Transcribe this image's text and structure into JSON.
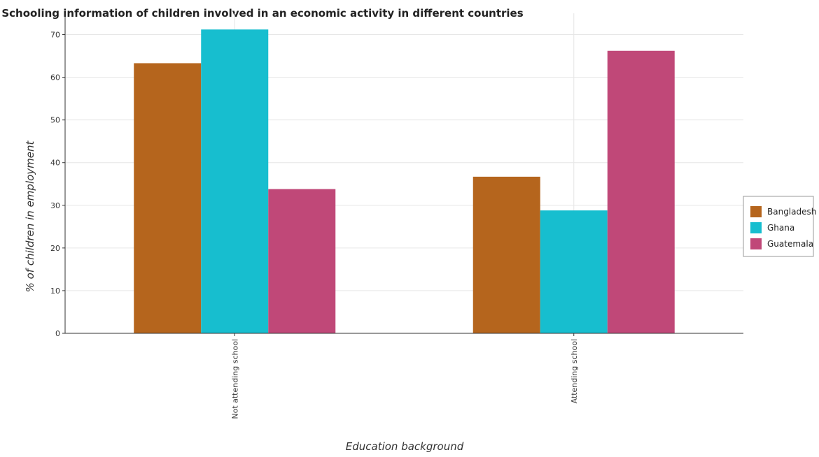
{
  "chart_data": {
    "type": "bar",
    "title": "Schooling information of children involved in an economic activity in different countries",
    "xlabel": "Education background",
    "ylabel": "% of children in employment",
    "categories": [
      "Not attending school",
      "Attending school"
    ],
    "series": [
      {
        "name": "Bangladesh",
        "color": "#b5651d",
        "values": [
          63.3,
          36.7
        ]
      },
      {
        "name": "Ghana",
        "color": "#17becf",
        "values": [
          71.2,
          28.8
        ]
      },
      {
        "name": "Guatemala",
        "color": "#c04878",
        "values": [
          33.8,
          66.2
        ]
      }
    ],
    "ylim": [
      0,
      75
    ],
    "yticks": [
      0,
      10,
      20,
      30,
      40,
      50,
      60,
      70
    ],
    "grid": true,
    "legend_position": "right"
  }
}
